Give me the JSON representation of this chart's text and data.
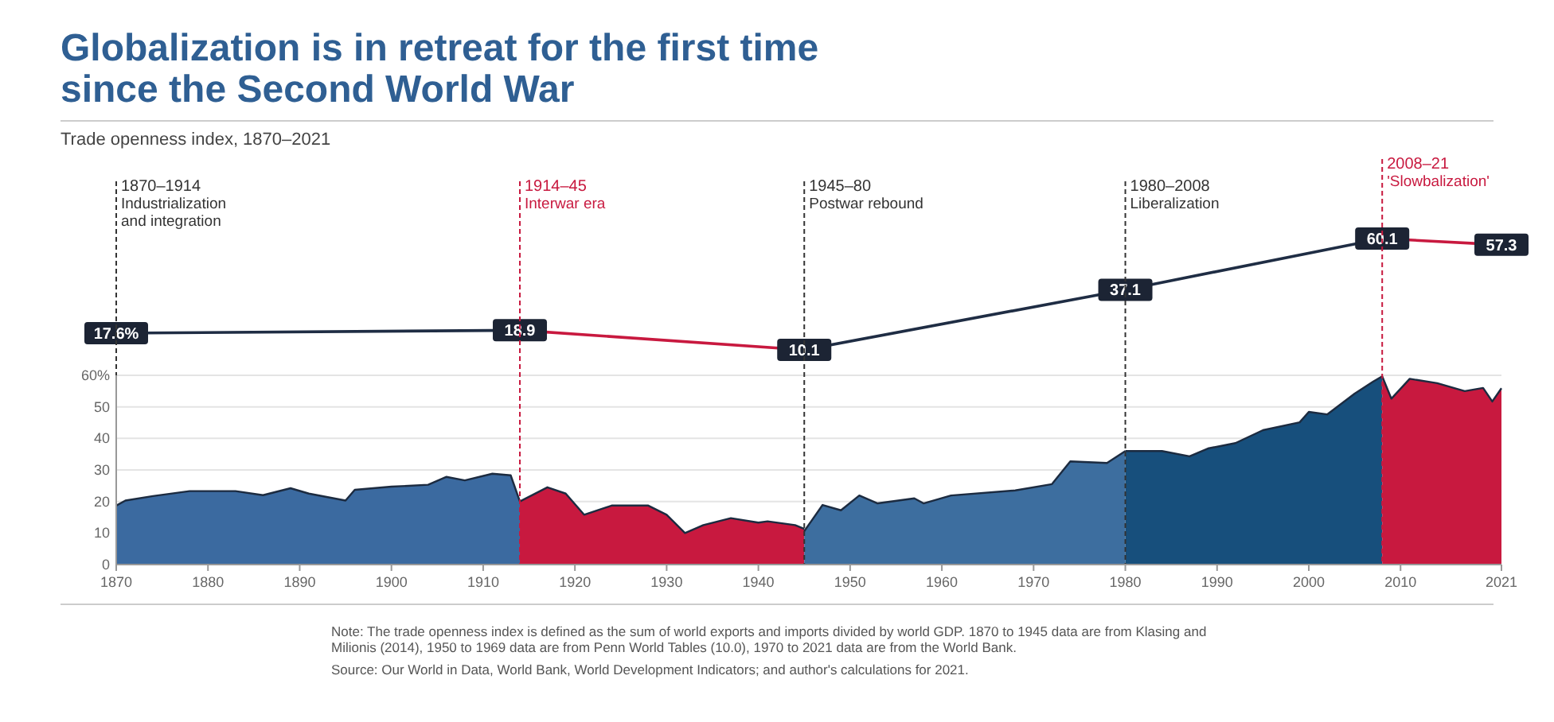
{
  "chart_data": [
    {
      "type": "line",
      "title": "Globalization is in retreat for the first time since the Second World War",
      "subtitle": "Trade openness index, 1870–2021",
      "xlim": [
        1870,
        2021
      ],
      "series": [
        {
          "color": "#1f2d44",
          "marker": "square",
          "x": [
            1870,
            1914
          ],
          "values": [
            17.6,
            18.9
          ],
          "value_labels": [
            "17.6%",
            "18.9"
          ]
        },
        {
          "color": "#c8193f",
          "x": [
            1914,
            1945
          ],
          "values": [
            18.9,
            10.1
          ]
        },
        {
          "color": "#1f2d44",
          "marker": "square",
          "x": [
            1945,
            1980,
            2008
          ],
          "values": [
            10.1,
            37.1,
            60.1
          ],
          "value_labels": [
            "10.1",
            "37.1",
            "60.1"
          ]
        },
        {
          "color": "#c8193f",
          "marker": "square",
          "x": [
            2008,
            2021
          ],
          "values": [
            60.1,
            57.3
          ],
          "value_labels": [
            null,
            "57.3"
          ]
        }
      ]
    },
    {
      "type": "area",
      "xlim": [
        1870,
        2021
      ],
      "ylim": [
        0,
        60
      ],
      "yticks": [
        0,
        10,
        20,
        30,
        40,
        50,
        {
          "value": 60,
          "label": "60%"
        }
      ],
      "xticks": [
        1870,
        1880,
        1890,
        1900,
        1910,
        1920,
        1930,
        1940,
        1950,
        1960,
        1970,
        1980,
        1990,
        2000,
        2010,
        2021
      ],
      "grid": "y",
      "ref_lines": [
        {
          "axis": "x",
          "value": 1870,
          "label": "1870–1914\nIndustrialization\nand integration",
          "color": "#333333"
        },
        {
          "axis": "x",
          "value": 1914,
          "label": "1914–45\nInterwar era",
          "color": "#c8193f"
        },
        {
          "axis": "x",
          "value": 1945,
          "label": "1945–80\nPostwar rebound",
          "color": "#333333"
        },
        {
          "axis": "x",
          "value": 1980,
          "label": "1980–2008\nLiberalization",
          "color": "#333333"
        },
        {
          "axis": "x",
          "value": 2008,
          "label": "2008–21\n'Slowbalization'",
          "color": "#c8193f"
        }
      ],
      "annotations": [
        "Note: The trade openness index is defined as the sum of world exports and imports divided by world GDP. 1870 to 1945 data are from Klasing and Milionis (2014), 1950 to 1969 data are from Penn World Tables (10.0), 1970 to 2021 data are from the World Bank.",
        "Source: Our World in Data, World Bank, World Development Indicators; and author's calculations for 2021."
      ],
      "series": [
        {
          "color": "#3b6aa0",
          "x": [
            1870,
            1871,
            1874,
            1878,
            1883,
            1886,
            1889,
            1891,
            1895,
            1896,
            1900,
            1904,
            1906,
            1908,
            1911,
            1913,
            1914
          ],
          "values": [
            18.7,
            20.3,
            21.7,
            23.3,
            23.3,
            22,
            24.2,
            22.5,
            20.3,
            23.7,
            24.7,
            25.3,
            27.8,
            26.7,
            28.8,
            28.3,
            20
          ]
        },
        {
          "color": "#c8193f",
          "x": [
            1914,
            1917,
            1919,
            1921,
            1924,
            1928,
            1930,
            1932,
            1934,
            1937,
            1940,
            1941,
            1944,
            1945
          ],
          "values": [
            20,
            24.5,
            22.5,
            15.8,
            18.7,
            18.7,
            15.8,
            10,
            12.5,
            14.7,
            13.3,
            13.7,
            12.5,
            11.3
          ]
        },
        {
          "color": "#3d6e9f",
          "x": [
            1945,
            1947,
            1949,
            1951,
            1953,
            1957,
            1958,
            1961,
            1968,
            1972,
            1974,
            1978,
            1980
          ],
          "values": [
            10.6,
            18.9,
            17.2,
            21.9,
            19.4,
            21,
            19.4,
            21.9,
            23.5,
            25.5,
            32.7,
            32.2,
            36
          ]
        },
        {
          "color": "#174f7c",
          "x": [
            1980,
            1984,
            1987,
            1989,
            1992,
            1995,
            1999,
            2000,
            2002,
            2005,
            2007,
            2008
          ],
          "values": [
            36,
            36,
            34.3,
            36.8,
            38.5,
            42.6,
            45.1,
            48.4,
            47.6,
            54.2,
            58,
            59.7
          ]
        },
        {
          "color": "#c8193f",
          "x": [
            2008,
            2009,
            2011,
            2014,
            2017,
            2019,
            2020,
            2021
          ],
          "values": [
            59.7,
            52.6,
            58.9,
            57.5,
            55,
            56,
            51.7,
            55.9
          ]
        }
      ]
    }
  ]
}
